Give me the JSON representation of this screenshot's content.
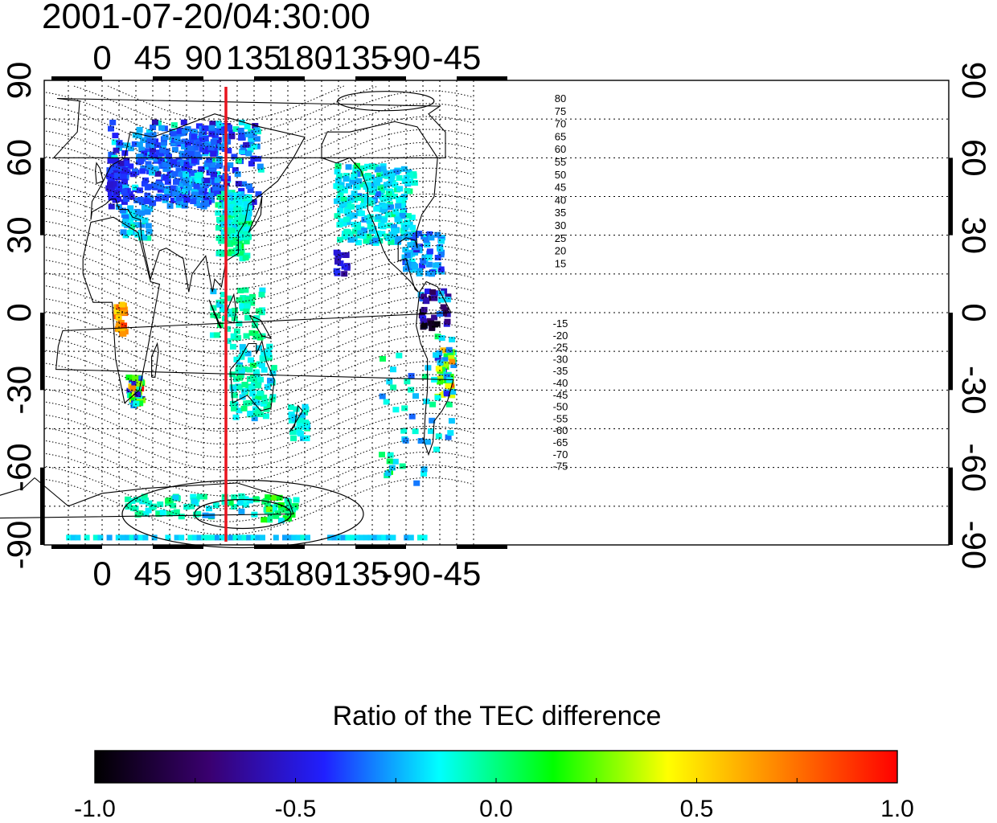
{
  "timestamp": "2001-07-20/04:30:00",
  "map": {
    "lon_ticks": [
      {
        "lon": 0,
        "label": "0"
      },
      {
        "lon": 45,
        "label": "45"
      },
      {
        "lon": 90,
        "label": "90"
      },
      {
        "lon": 135,
        "label": "135"
      },
      {
        "lon": 180,
        "label": "180"
      },
      {
        "lon": 225,
        "label": "-135"
      },
      {
        "lon": 270,
        "label": "-90"
      },
      {
        "lon": 315,
        "label": "-45"
      }
    ],
    "lat_ticks": [
      {
        "lat": 90,
        "label": "90"
      },
      {
        "lat": 60,
        "label": "60"
      },
      {
        "lat": 30,
        "label": "30"
      },
      {
        "lat": 0,
        "label": "0"
      },
      {
        "lat": -30,
        "label": "-30"
      },
      {
        "lat": -60,
        "label": "-60"
      },
      {
        "lat": -90,
        "label": "-90"
      }
    ],
    "marker_longitude": 110,
    "contour_labels_north": [
      "80",
      "75",
      "70",
      "65",
      "60",
      "55",
      "50",
      "45",
      "40",
      "35",
      "30",
      "25",
      "20",
      "15"
    ],
    "contour_labels_south": [
      "-15",
      "-20",
      "-25",
      "-30",
      "-35",
      "-40",
      "-45",
      "-50",
      "-55",
      "-60",
      "-65",
      "-70",
      "-75"
    ],
    "colors": {
      "marker": "#e8141e",
      "coast": "#000000",
      "grid": "#000000"
    }
  },
  "colorbar": {
    "title": "Ratio of the TEC difference",
    "min": -1.0,
    "max": 1.0,
    "ticks": [
      "-1.0",
      "-0.5",
      "0.0",
      "0.5",
      "1.0"
    ],
    "colormap": [
      "#000000",
      "#3a0070",
      "#2020ff",
      "#00ffff",
      "#00ff00",
      "#ffff00",
      "#ff8000",
      "#ff0000"
    ]
  }
}
